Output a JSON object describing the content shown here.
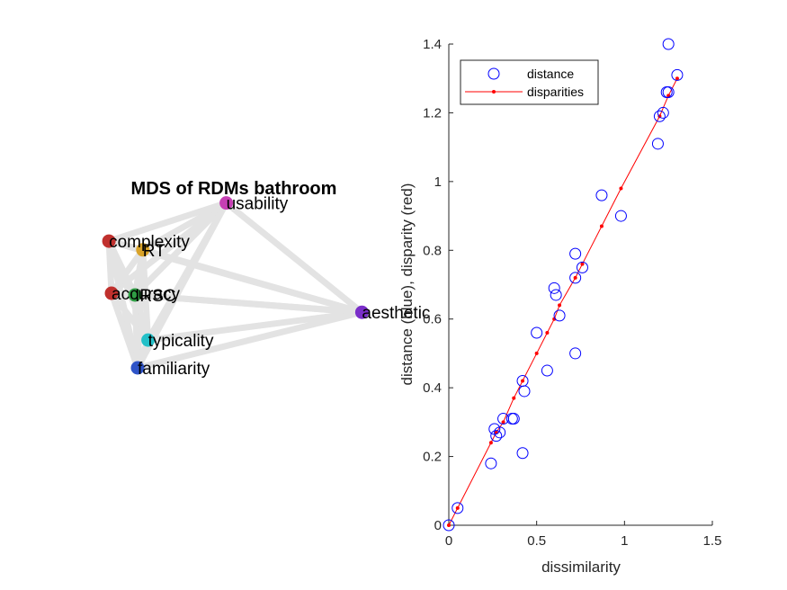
{
  "chart_data": [
    {
      "type": "scatter",
      "title": "MDS of RDMs bathroom",
      "edge_color": "#e3e3e3",
      "nodes": [
        {
          "label": "usability",
          "x": 0.2,
          "y": 0.85,
          "color": "#c63fb4"
        },
        {
          "label": "complexity",
          "x": -0.25,
          "y": 0.63,
          "color": "#c0302d"
        },
        {
          "label": "RT",
          "x": -0.12,
          "y": 0.58,
          "color": "#d9a329"
        },
        {
          "label": "accuracy",
          "x": -0.24,
          "y": 0.33,
          "color": "#c0302d"
        },
        {
          "label": "IRSC",
          "x": -0.15,
          "y": 0.32,
          "color": "#2f9e44"
        },
        {
          "label": "typicality",
          "x": -0.1,
          "y": 0.06,
          "color": "#22c0c8"
        },
        {
          "label": "familiarity",
          "x": -0.14,
          "y": -0.1,
          "color": "#2f54c8"
        },
        {
          "label": "aesthetic",
          "x": 0.72,
          "y": 0.22,
          "color": "#7a2ec9"
        }
      ]
    },
    {
      "type": "scatter",
      "xlabel": "dissimilarity",
      "ylabel": "distance (blue), disparity (red)",
      "xlim": [
        0,
        1.5
      ],
      "ylim": [
        0,
        1.4
      ],
      "xticks": [
        "0",
        "0.5",
        "1",
        "1.5"
      ],
      "yticks": [
        "0",
        "0.2",
        "0.4",
        "0.6",
        "0.8",
        "1",
        "1.2",
        "1.4"
      ],
      "legend_position": "top-left",
      "series": [
        {
          "name": "distance",
          "color": "#0000ff",
          "marker": "open-circle",
          "points": [
            [
              0.0,
              0.0
            ],
            [
              0.05,
              0.05
            ],
            [
              0.24,
              0.18
            ],
            [
              0.26,
              0.28
            ],
            [
              0.27,
              0.26
            ],
            [
              0.29,
              0.27
            ],
            [
              0.31,
              0.31
            ],
            [
              0.36,
              0.31
            ],
            [
              0.37,
              0.31
            ],
            [
              0.42,
              0.21
            ],
            [
              0.42,
              0.42
            ],
            [
              0.43,
              0.39
            ],
            [
              0.5,
              0.56
            ],
            [
              0.56,
              0.45
            ],
            [
              0.6,
              0.69
            ],
            [
              0.61,
              0.67
            ],
            [
              0.63,
              0.61
            ],
            [
              0.72,
              0.79
            ],
            [
              0.72,
              0.72
            ],
            [
              0.72,
              0.5
            ],
            [
              0.76,
              0.75
            ],
            [
              0.87,
              0.96
            ],
            [
              0.98,
              0.9
            ],
            [
              1.19,
              1.11
            ],
            [
              1.2,
              1.19
            ],
            [
              1.22,
              1.2
            ],
            [
              1.24,
              1.26
            ],
            [
              1.25,
              1.26
            ],
            [
              1.25,
              1.4
            ],
            [
              1.3,
              1.31
            ]
          ]
        },
        {
          "name": "disparities",
          "color": "#ff0000",
          "marker": "line-dot",
          "points": [
            [
              0.0,
              0.0
            ],
            [
              0.05,
              0.05
            ],
            [
              0.24,
              0.24
            ],
            [
              0.27,
              0.27
            ],
            [
              0.31,
              0.3
            ],
            [
              0.37,
              0.37
            ],
            [
              0.42,
              0.42
            ],
            [
              0.5,
              0.5
            ],
            [
              0.56,
              0.56
            ],
            [
              0.6,
              0.6
            ],
            [
              0.63,
              0.64
            ],
            [
              0.72,
              0.72
            ],
            [
              0.76,
              0.76
            ],
            [
              0.87,
              0.87
            ],
            [
              0.98,
              0.98
            ],
            [
              1.2,
              1.19
            ],
            [
              1.25,
              1.25
            ],
            [
              1.3,
              1.3
            ]
          ]
        }
      ]
    }
  ]
}
